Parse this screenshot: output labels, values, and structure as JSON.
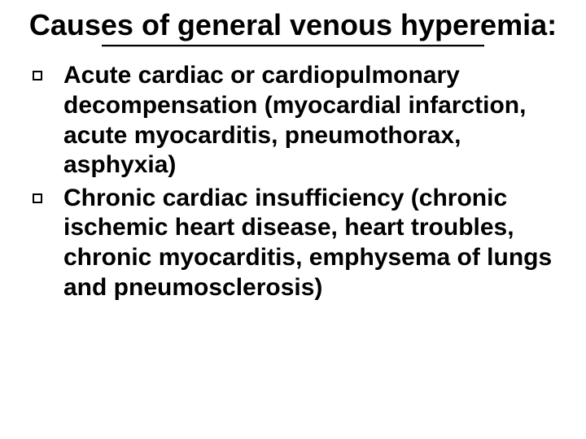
{
  "slide": {
    "title": "Causes of general venous hyperemia:",
    "title_fontsize": 36,
    "title_color": "#000000",
    "underline_color": "#000000",
    "underline_shadow_color": "#c0c0c0",
    "background_color": "#ffffff",
    "bullets": [
      {
        "text": "Acute cardiac or cardiopulmonary decompensation (myocardial infarction, acute myocarditis, pneumothorax, asphyxia)"
      },
      {
        "text": "Chronic cardiac insufficiency (chronic ischemic heart disease, heart troubles, chronic myocarditis, emphysema of lungs and pneumosclerosis)"
      }
    ],
    "bullet_marker": "hollow-square",
    "bullet_border_color": "#000000",
    "body_fontsize": 30,
    "body_font_weight": "bold",
    "body_color": "#000000",
    "font_family": "Verdana"
  }
}
